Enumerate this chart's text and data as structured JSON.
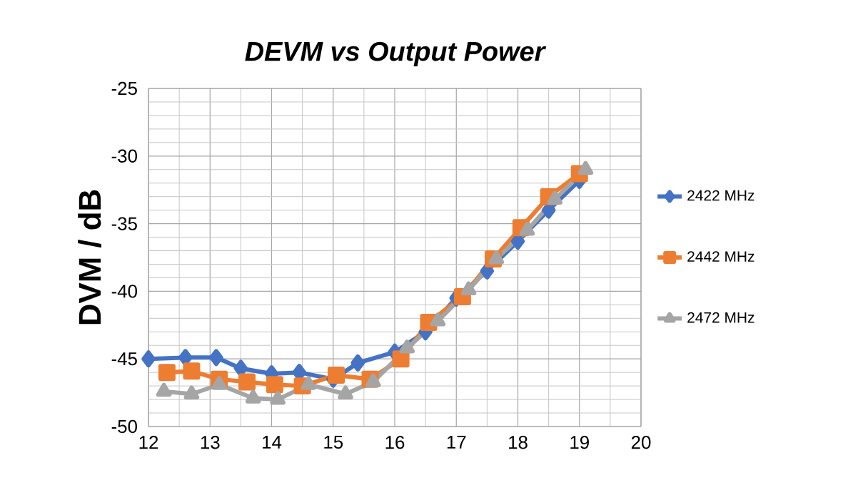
{
  "chart_data": {
    "type": "line",
    "title": "DEVM vs Output Power",
    "ylabel": "DVM / dB",
    "xlim": [
      12,
      20
    ],
    "xticks": [
      12,
      13,
      14,
      15,
      16,
      17,
      18,
      19,
      20
    ],
    "ylim": [
      -50,
      -25
    ],
    "yticks": [
      -50,
      -45,
      -40,
      -35,
      -30,
      -25
    ],
    "grid": true,
    "legend": "right",
    "line_style": "solid",
    "series": [
      {
        "name": "2422 MHz",
        "color": "#4472c4",
        "marker": "diamond",
        "x": [
          12.0,
          12.6,
          13.1,
          13.5,
          14.0,
          14.45,
          15.0,
          15.4,
          16.0,
          16.5,
          17.0,
          17.5,
          18.0,
          18.5,
          19.0
        ],
        "values": [
          -45.0,
          -44.9,
          -44.9,
          -45.7,
          -46.1,
          -46.0,
          -46.5,
          -45.3,
          -44.5,
          -43.0,
          -40.5,
          -38.5,
          -36.3,
          -34.0,
          -31.8
        ]
      },
      {
        "name": "2442 MHz",
        "color": "#ed7d31",
        "marker": "square",
        "x": [
          12.3,
          12.7,
          13.15,
          13.6,
          14.05,
          14.5,
          15.05,
          15.6,
          16.1,
          16.55,
          17.1,
          17.6,
          18.05,
          18.5,
          19.0
        ],
        "values": [
          -46.0,
          -45.9,
          -46.5,
          -46.7,
          -46.9,
          -47.0,
          -46.2,
          -46.5,
          -45.0,
          -42.3,
          -40.4,
          -37.6,
          -35.3,
          -33.0,
          -31.3
        ]
      },
      {
        "name": "2472 MHz",
        "color": "#a5a5a5",
        "marker": "triangle",
        "x": [
          12.25,
          12.7,
          13.15,
          13.7,
          14.1,
          14.6,
          15.2,
          15.65,
          16.2,
          16.7,
          17.2,
          17.65,
          18.15,
          18.6,
          19.1
        ],
        "values": [
          -47.4,
          -47.6,
          -46.9,
          -47.9,
          -48.0,
          -46.9,
          -47.6,
          -46.7,
          -44.2,
          -42.2,
          -39.9,
          -37.6,
          -35.5,
          -33.2,
          -31.0
        ]
      }
    ]
  }
}
